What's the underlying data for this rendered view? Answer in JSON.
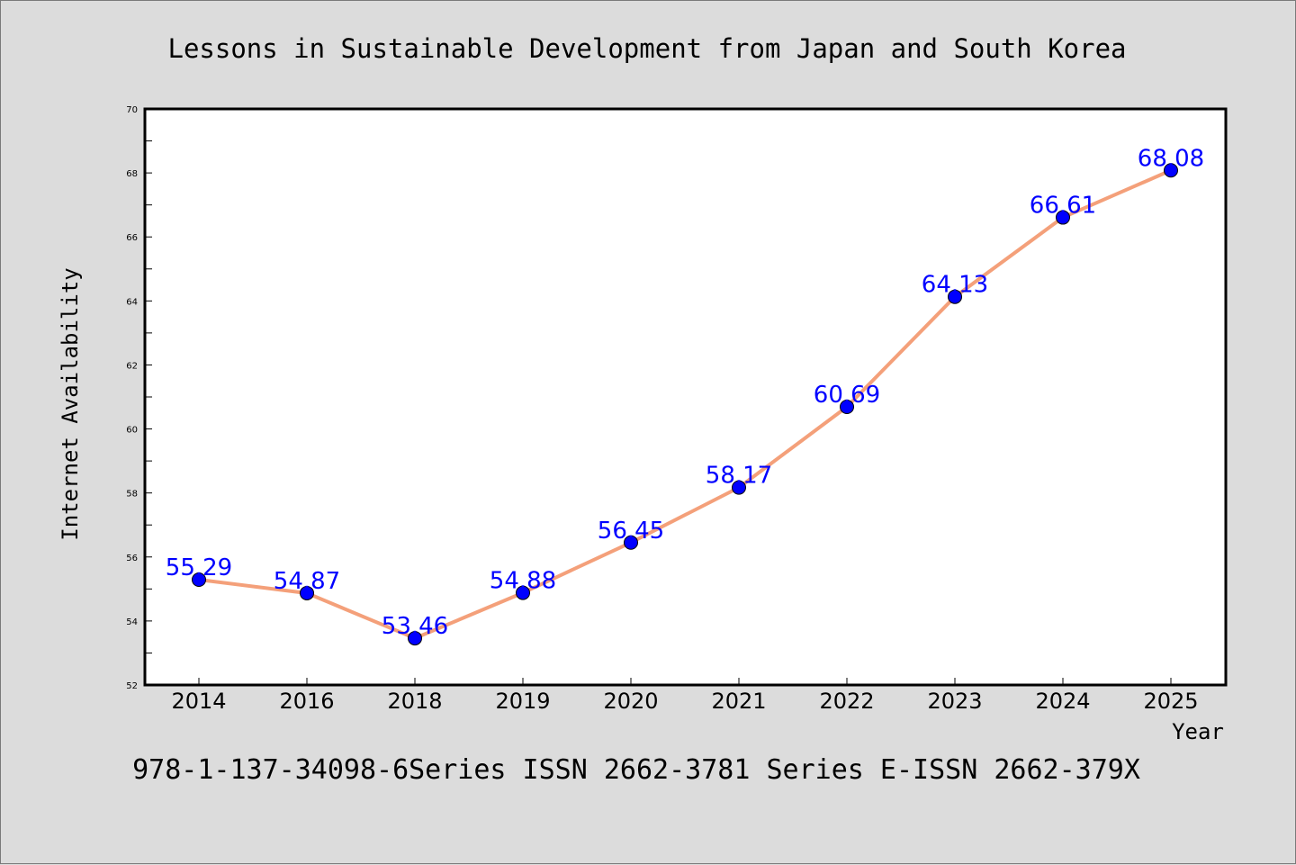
{
  "chart_data": {
    "type": "line",
    "title": "Lessons in Sustainable Development from Japan and South Korea",
    "xlabel": "Year",
    "ylabel": "Internet Availability",
    "categories": [
      "2014",
      "2016",
      "2018",
      "2019",
      "2020",
      "2021",
      "2022",
      "2023",
      "2024",
      "2025"
    ],
    "series": [
      {
        "values": [
          55.29,
          54.87,
          53.46,
          54.88,
          56.45,
          58.17,
          60.69,
          64.13,
          66.61,
          68.08
        ],
        "labels": [
          "55.29",
          "54.87",
          "53.46",
          "54.88",
          "56.45",
          "58.17",
          "60.69",
          "64.13",
          "66.61",
          "68.08"
        ],
        "line_color": "#f4a07a",
        "marker_color": "#0000ff"
      }
    ],
    "ylim": [
      52,
      70
    ],
    "yticks": [
      52,
      54,
      56,
      58,
      60,
      62,
      64,
      66,
      68,
      70
    ],
    "grid": false,
    "legend": "none"
  },
  "footer": {
    "text": "978-1-137-34098-6Series ISSN 2662-3781 Series E-ISSN 2662-379X"
  },
  "colors": {
    "background": "#dcdcdc",
    "plot_background": "#ffffff",
    "line": "#f4a07a",
    "marker": "#0000ff",
    "label": "#0000ff"
  }
}
